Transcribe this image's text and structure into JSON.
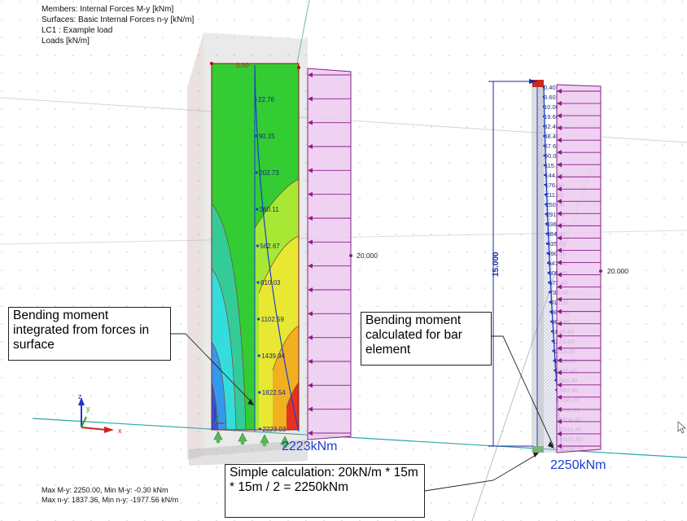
{
  "header": {
    "line1": "Members: Internal Forces M-y [kNm]",
    "line2": "Surfaces: Basic Internal Forces n-y [kN/m]",
    "line3": "LC1 : Example load",
    "line4": "Loads [kN/m]"
  },
  "footer": {
    "line1": "Max M-y: 2250.00, Min M-y: -0.30 kNm",
    "line2": "Max n-y: 1837.36, Min n-y: -1977.56 kN/m"
  },
  "surface": {
    "top_label": "0.00",
    "moment_labels": [
      "22.76",
      "90.15",
      "202.73",
      "360.11",
      "562.67",
      "810.03",
      "1102.59",
      "1439.94",
      "1822.54",
      "2223.03"
    ],
    "load_label": "20.000",
    "result": "2223kNm"
  },
  "bar": {
    "length_label": "15.000",
    "load_label": "20.000",
    "moment_labels": [
      "0.40",
      "3.60",
      "10.00",
      "19.60",
      "32.40",
      "48.40",
      "67.60",
      "90.00",
      "115.60",
      "144.40",
      "176.40",
      "211.60",
      "250.00",
      "291.60",
      "336.40",
      "384.40",
      "435.60",
      "490.00",
      "547.60",
      "608.40",
      "672.40",
      "739.60",
      "810.00",
      "883.60",
      "960.40",
      "1040.40",
      "1123.60",
      "1210.00",
      "1299.60",
      "1392.40",
      "1488.40",
      "1587.60",
      "1690.00",
      "1795.60",
      "1904.40",
      "2016.40",
      "2131.60",
      "2250.00"
    ],
    "result": "2250kNm"
  },
  "callouts": {
    "surface_text": "Bending moment integrated from forces in surface",
    "bar_text": "Bending moment calculated for bar element",
    "calc_text": "Simple calculation: 20kN/m * 15m * 15m / 2 = 2250kNm"
  },
  "axes": {
    "x": "x",
    "y": "y",
    "z": "z"
  },
  "colors": {
    "moment_blue": "#1a3fd0",
    "load_purple": "#8a1f8a",
    "load_fill": "#ecc9ee",
    "surface_green": "#33cc33"
  }
}
